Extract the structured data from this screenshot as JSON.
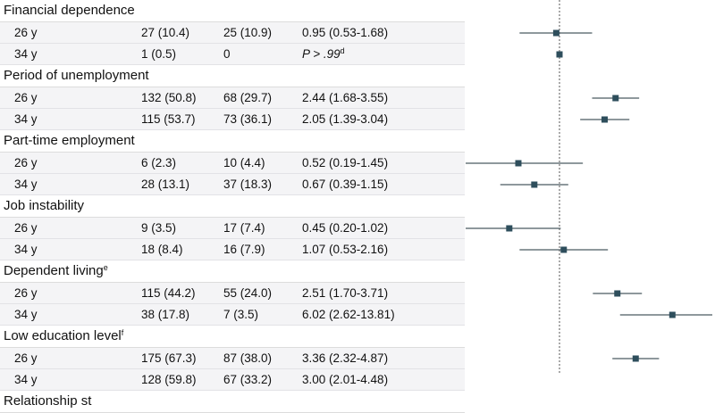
{
  "table": {
    "groups": [
      {
        "title": "Financial dependence",
        "sup": "",
        "rows": [
          {
            "label": "26 y",
            "a": "27 (10.4)",
            "b": "25 (10.9)",
            "or_text": "0.95 (0.53-1.68)",
            "or_sup": ""
          },
          {
            "label": "34 y",
            "a": "1 (0.5)",
            "b": "0",
            "or_text": "P > .99",
            "or_sup": "d"
          }
        ]
      },
      {
        "title": "Period of unemployment",
        "sup": "",
        "rows": [
          {
            "label": "26 y",
            "a": "132 (50.8)",
            "b": "68 (29.7)",
            "or_text": "2.44 (1.68-3.55)",
            "or_sup": ""
          },
          {
            "label": "34 y",
            "a": "115 (53.7)",
            "b": "73 (36.1)",
            "or_text": "2.05 (1.39-3.04)",
            "or_sup": ""
          }
        ]
      },
      {
        "title": "Part-time employment",
        "sup": "",
        "rows": [
          {
            "label": "26 y",
            "a": "6 (2.3)",
            "b": "10 (4.4)",
            "or_text": "0.52 (0.19-1.45)",
            "or_sup": ""
          },
          {
            "label": "34 y",
            "a": "28 (13.1)",
            "b": "37 (18.3)",
            "or_text": "0.67 (0.39-1.15)",
            "or_sup": ""
          }
        ]
      },
      {
        "title": "Job instability",
        "sup": "",
        "rows": [
          {
            "label": "26 y",
            "a": "9 (3.5)",
            "b": "17 (7.4)",
            "or_text": "0.45 (0.20-1.02)",
            "or_sup": ""
          },
          {
            "label": "34 y",
            "a": "18 (8.4)",
            "b": "16 (7.9)",
            "or_text": "1.07 (0.53-2.16)",
            "or_sup": ""
          }
        ]
      },
      {
        "title": "Dependent living",
        "sup": "e",
        "rows": [
          {
            "label": "26 y",
            "a": "115 (44.2)",
            "b": "55 (24.0)",
            "or_text": "2.51 (1.70-3.71)",
            "or_sup": ""
          },
          {
            "label": "34 y",
            "a": "38 (17.8)",
            "b": "7 (3.5)",
            "or_text": "6.02 (2.62-13.81)",
            "or_sup": ""
          }
        ]
      },
      {
        "title": "Low education level",
        "sup": "f",
        "rows": [
          {
            "label": "26 y",
            "a": "175 (67.3)",
            "b": "87 (38.0)",
            "or_text": "3.36 (2.32-4.87)",
            "or_sup": ""
          },
          {
            "label": "34 y",
            "a": "128 (59.8)",
            "b": "67 (33.2)",
            "or_text": "3.00 (2.01-4.48)",
            "or_sup": ""
          }
        ]
      },
      {
        "title": "Relationship st",
        "sup": "",
        "rows": []
      }
    ]
  },
  "chart_data": {
    "type": "scatter",
    "x_scale": "log",
    "xlim": [
      0.15,
      20
    ],
    "reference_line": 1,
    "marker_color": "#2e4e5c",
    "line_color": "#4a5a60",
    "points": [
      {
        "group": "Financial dependence",
        "label": "26 y",
        "or": 0.95,
        "lo": 0.53,
        "hi": 1.68
      },
      {
        "group": "Financial dependence",
        "label": "34 y",
        "or": 1.0,
        "lo": null,
        "hi": null
      },
      {
        "group": "Period of unemployment",
        "label": "26 y",
        "or": 2.44,
        "lo": 1.68,
        "hi": 3.55
      },
      {
        "group": "Period of unemployment",
        "label": "34 y",
        "or": 2.05,
        "lo": 1.39,
        "hi": 3.04
      },
      {
        "group": "Part-time employment",
        "label": "26 y",
        "or": 0.52,
        "lo": 0.19,
        "hi": 1.45
      },
      {
        "group": "Part-time employment",
        "label": "34 y",
        "or": 0.67,
        "lo": 0.39,
        "hi": 1.15
      },
      {
        "group": "Job instability",
        "label": "26 y",
        "or": 0.45,
        "lo": 0.2,
        "hi": 1.02
      },
      {
        "group": "Job instability",
        "label": "34 y",
        "or": 1.07,
        "lo": 0.53,
        "hi": 2.16
      },
      {
        "group": "Dependent living",
        "label": "26 y",
        "or": 2.51,
        "lo": 1.7,
        "hi": 3.71
      },
      {
        "group": "Dependent living",
        "label": "34 y",
        "or": 6.02,
        "lo": 2.62,
        "hi": 13.81
      },
      {
        "group": "Low education level",
        "label": "26 y",
        "or": 3.36,
        "lo": 2.32,
        "hi": 4.87
      },
      {
        "group": "Low education level",
        "label": "34 y",
        "or": 3.0,
        "lo": 2.01,
        "hi": 4.48
      }
    ]
  }
}
